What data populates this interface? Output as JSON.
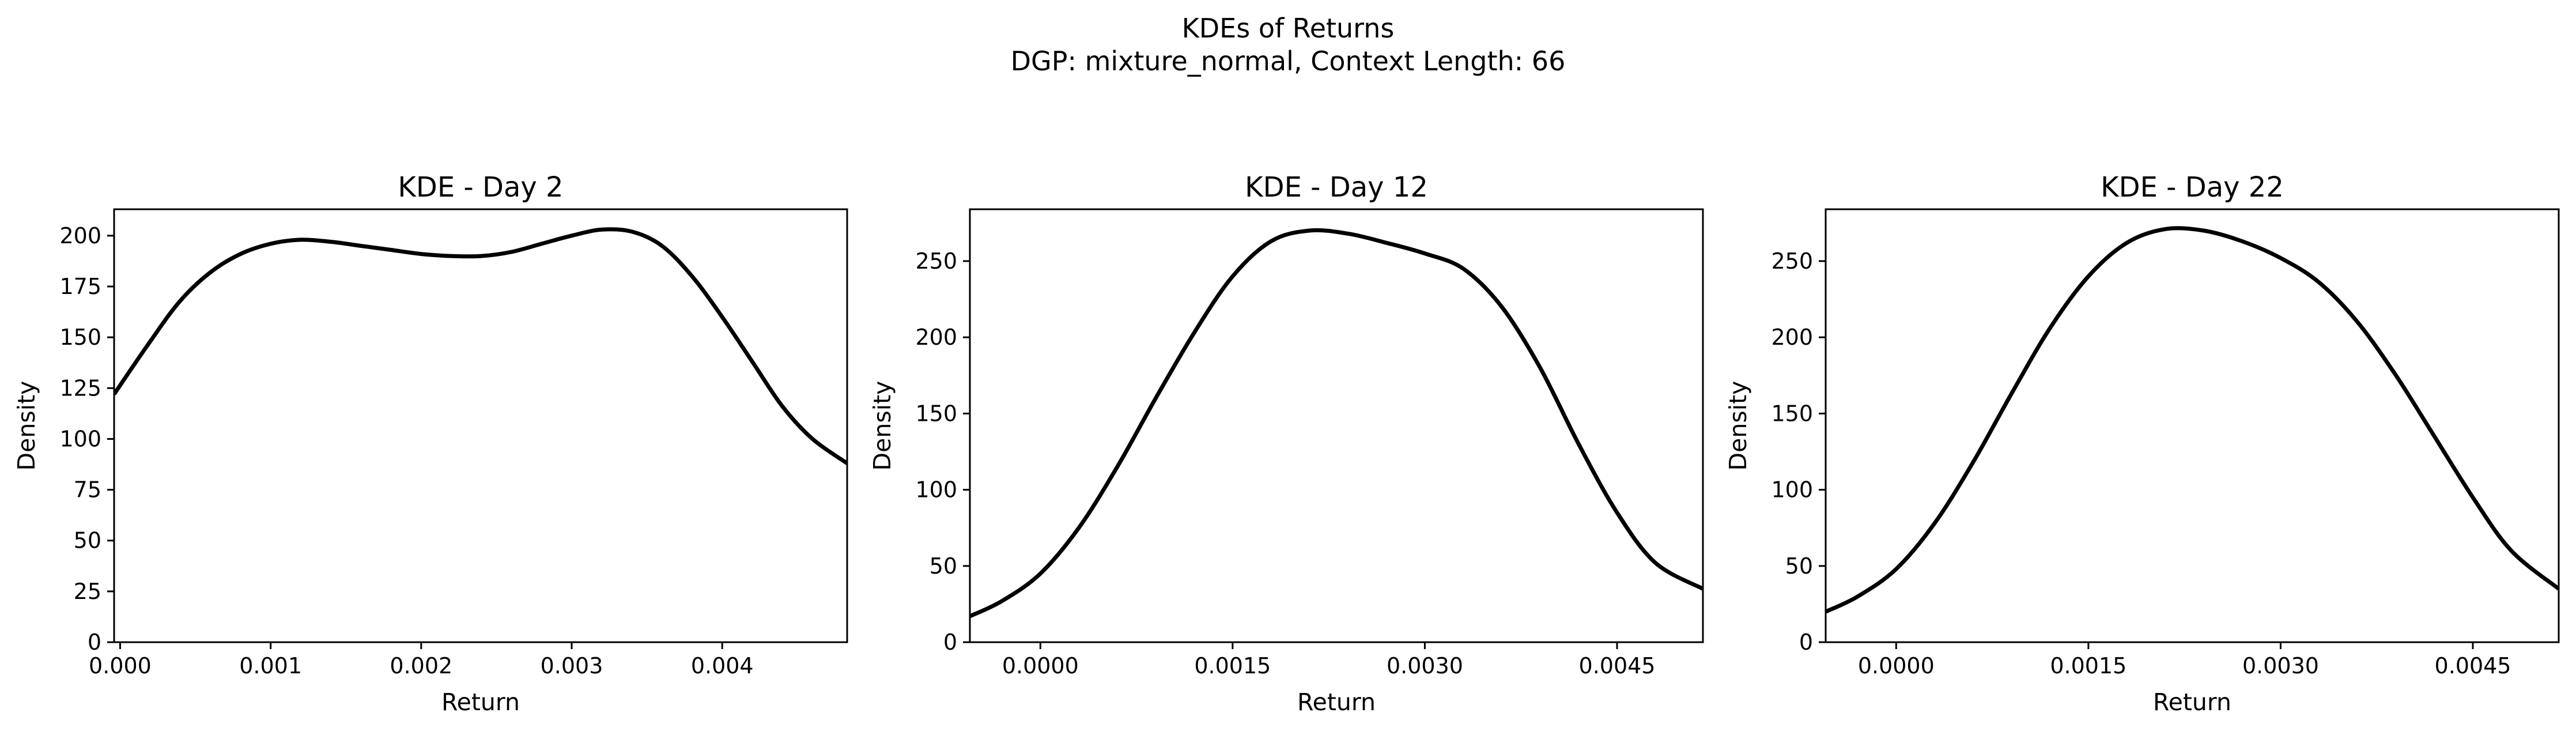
{
  "figure": {
    "title_line1": "KDEs of Returns",
    "title_line2": "DGP: mixture_normal, Context Length: 66"
  },
  "chart_data": [
    {
      "type": "line",
      "title": "KDE - Day 2",
      "xlabel": "Return",
      "ylabel": "Density",
      "xlim": [
        -4e-05,
        0.00483
      ],
      "ylim": [
        0,
        213
      ],
      "xticks": [
        0.0,
        0.001,
        0.002,
        0.003,
        0.004
      ],
      "xtick_labels": [
        "0.000",
        "0.001",
        "0.002",
        "0.003",
        "0.004"
      ],
      "yticks": [
        0,
        25,
        50,
        75,
        100,
        125,
        150,
        175,
        200
      ],
      "ytick_labels": [
        "0",
        "25",
        "50",
        "75",
        "100",
        "125",
        "150",
        "175",
        "200"
      ],
      "grid": false,
      "color": "#000000",
      "series": [
        {
          "x": [
            -4e-05,
            0.0002,
            0.0004,
            0.0006,
            0.0008,
            0.001,
            0.0012,
            0.0014,
            0.0016,
            0.0018,
            0.002,
            0.0022,
            0.0024,
            0.0026,
            0.0028,
            0.003,
            0.0032,
            0.0034,
            0.0036,
            0.0038,
            0.004,
            0.0042,
            0.0044,
            0.0046,
            0.00483
          ],
          "y": [
            122,
            148,
            168,
            182,
            191,
            196,
            198,
            197,
            195,
            193,
            191,
            190,
            190,
            192,
            196,
            200,
            203,
            202,
            195,
            180,
            160,
            138,
            116,
            100,
            88
          ]
        }
      ]
    },
    {
      "type": "line",
      "title": "KDE - Day 12",
      "xlabel": "Return",
      "ylabel": "Density",
      "xlim": [
        -0.00055,
        0.00517
      ],
      "ylim": [
        0,
        284
      ],
      "xticks": [
        0.0,
        0.0015,
        0.003,
        0.0045
      ],
      "xtick_labels": [
        "0.0000",
        "0.0015",
        "0.0030",
        "0.0045"
      ],
      "yticks": [
        0,
        50,
        100,
        150,
        200,
        250
      ],
      "ytick_labels": [
        "0",
        "50",
        "100",
        "150",
        "200",
        "250"
      ],
      "grid": false,
      "color": "#000000",
      "series": [
        {
          "x": [
            -0.00055,
            -0.0003,
            0.0,
            0.0003,
            0.0006,
            0.0009,
            0.0012,
            0.0015,
            0.0018,
            0.0021,
            0.0024,
            0.0027,
            0.003,
            0.0033,
            0.0036,
            0.0039,
            0.0042,
            0.0045,
            0.0048,
            0.00517
          ],
          "y": [
            17,
            27,
            45,
            75,
            115,
            160,
            203,
            240,
            263,
            270,
            268,
            262,
            255,
            245,
            220,
            180,
            130,
            85,
            52,
            35
          ]
        }
      ]
    },
    {
      "type": "line",
      "title": "KDE - Day 22",
      "xlabel": "Return",
      "ylabel": "Density",
      "xlim": [
        -0.00055,
        0.00517
      ],
      "ylim": [
        0,
        284
      ],
      "xticks": [
        0.0,
        0.0015,
        0.003,
        0.0045
      ],
      "xtick_labels": [
        "0.0000",
        "0.0015",
        "0.0030",
        "0.0045"
      ],
      "yticks": [
        0,
        50,
        100,
        150,
        200,
        250
      ],
      "ytick_labels": [
        "0",
        "50",
        "100",
        "150",
        "200",
        "250"
      ],
      "grid": false,
      "color": "#000000",
      "series": [
        {
          "x": [
            -0.00055,
            -0.0003,
            0.0,
            0.0003,
            0.0006,
            0.0009,
            0.0012,
            0.0015,
            0.0018,
            0.0021,
            0.0024,
            0.0027,
            0.003,
            0.0033,
            0.0036,
            0.0039,
            0.0042,
            0.0045,
            0.0048,
            0.00517
          ],
          "y": [
            20,
            30,
            48,
            78,
            118,
            163,
            206,
            240,
            262,
            271,
            270,
            263,
            252,
            236,
            210,
            175,
            135,
            95,
            60,
            35
          ]
        }
      ]
    }
  ]
}
